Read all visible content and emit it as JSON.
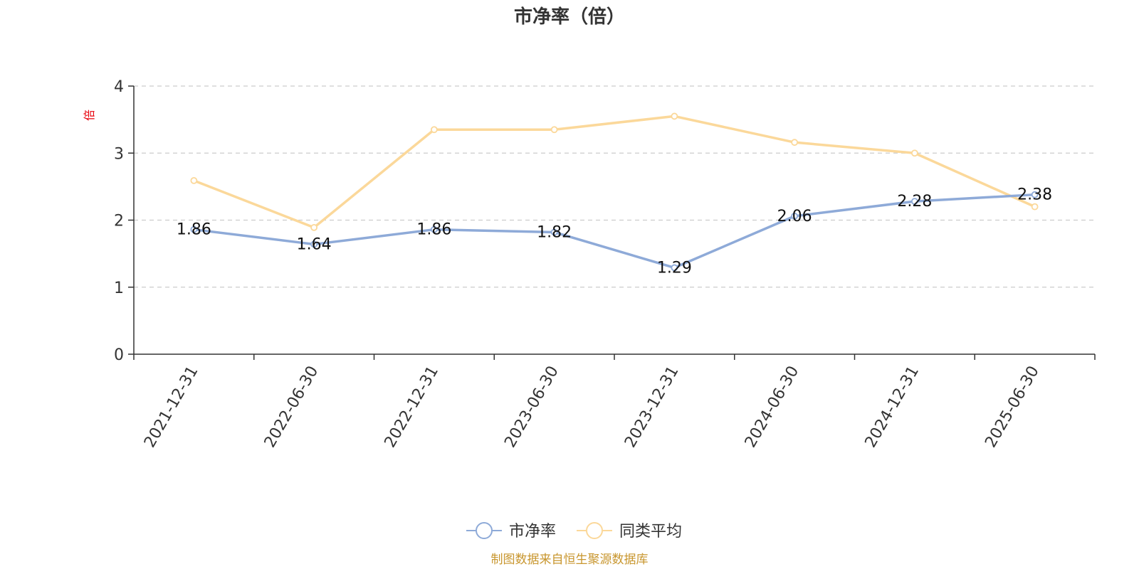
{
  "chart_data": {
    "type": "line",
    "title": "市净率（倍）",
    "ylabel": "倍",
    "ylim": [
      0,
      4
    ],
    "yticks": [
      0,
      1,
      2,
      3,
      4
    ],
    "grid": true,
    "legend_position": "bottom-center",
    "categories": [
      "2021-12-31",
      "2022-06-30",
      "2022-12-31",
      "2023-06-30",
      "2023-12-31",
      "2024-06-30",
      "2024-12-31",
      "2025-06-30"
    ],
    "series": [
      {
        "name": "市净率",
        "color": "#8eaad8",
        "show_labels": true,
        "values": [
          1.86,
          1.64,
          1.86,
          1.82,
          1.29,
          2.06,
          2.28,
          2.38
        ]
      },
      {
        "name": "同类平均",
        "color": "#fbd89a",
        "show_labels": false,
        "values": [
          2.59,
          1.89,
          3.35,
          3.35,
          3.55,
          3.16,
          3.0,
          2.2
        ]
      }
    ]
  },
  "source_text": "制图数据来自恒生聚源数据库",
  "colors": {
    "axis": "#333333",
    "grid": "#cccccc",
    "ylabel": "#e8000b",
    "source": "#c8962e"
  }
}
